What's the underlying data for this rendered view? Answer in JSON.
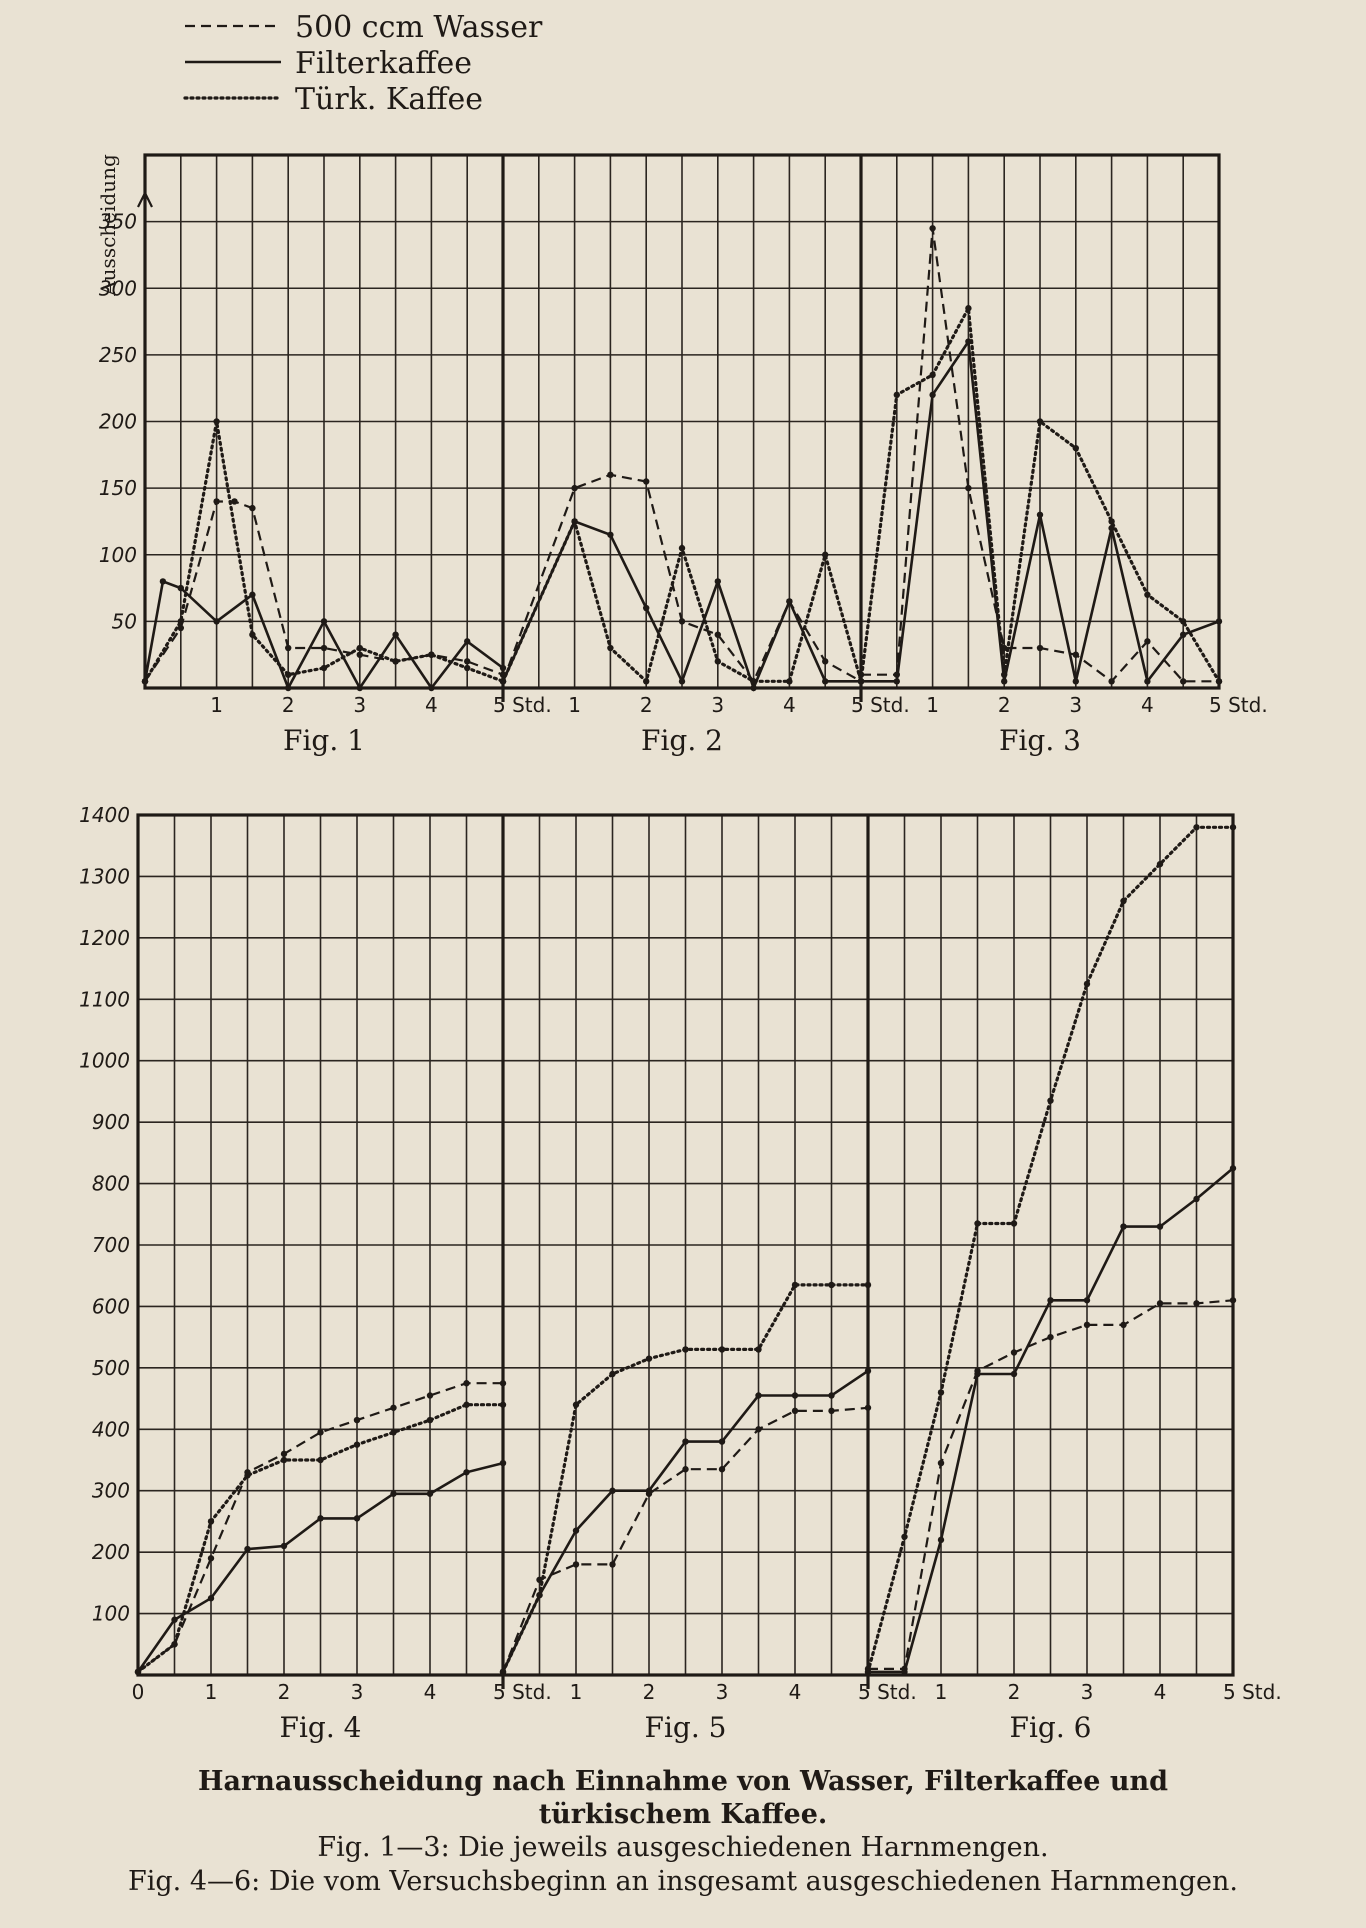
{
  "legend": {
    "items": [
      {
        "series": "wasser",
        "label": "500 ccm Wasser"
      },
      {
        "series": "filter",
        "label": "Filterkaffee"
      },
      {
        "series": "turk",
        "label": "Türk. Kaffee"
      }
    ]
  },
  "caption": {
    "title": "Harnausscheidung nach Einnahme von Wasser, Filterkaffee und türkischem Kaffee.",
    "line1": "Fig. 1—3: Die jeweils ausgeschiedenen Harnmengen.",
    "line2": "Fig. 4—6: Die vom Versuchsbeginn an insgesamt ausgeschiedenen Harnmengen."
  },
  "chart_data": [
    {
      "type": "line",
      "group": "top",
      "ylabel": "Ausscheidung",
      "ylim": [
        0,
        400
      ],
      "yticks": [
        50,
        100,
        150,
        200,
        250,
        300,
        350
      ],
      "xlim": [
        0,
        5
      ],
      "grid": true,
      "legend_position": "top-left",
      "panels": [
        {
          "figure": "Fig. 1",
          "xticks": [
            "1",
            "2",
            "3",
            "4",
            "5 Std."
          ],
          "series": [
            {
              "name": "500 ccm Wasser",
              "x": [
                0,
                0.5,
                1,
                1.25,
                1.5,
                2,
                2.5,
                3,
                3.5,
                4,
                4.5,
                5
              ],
              "y": [
                5,
                45,
                140,
                140,
                135,
                30,
                30,
                25,
                20,
                25,
                20,
                10
              ]
            },
            {
              "name": "Filterkaffee",
              "x": [
                0,
                0.25,
                0.5,
                1,
                1.5,
                2,
                2.5,
                3,
                3.5,
                4,
                4.5,
                5
              ],
              "y": [
                5,
                80,
                75,
                50,
                70,
                0,
                50,
                0,
                40,
                0,
                35,
                15
              ]
            },
            {
              "name": "Türk. Kaffee",
              "x": [
                0,
                0.5,
                1,
                1.5,
                2,
                2.5,
                3,
                3.5,
                4,
                4.5,
                5
              ],
              "y": [
                5,
                50,
                200,
                40,
                10,
                15,
                30,
                20,
                25,
                15,
                5
              ]
            }
          ]
        },
        {
          "figure": "Fig. 2",
          "xticks": [
            "1",
            "2",
            "3",
            "4",
            "5 Std."
          ],
          "series": [
            {
              "name": "500 ccm Wasser",
              "x": [
                0,
                1,
                1.5,
                2,
                2.5,
                3,
                3.5,
                4,
                4.5,
                5
              ],
              "y": [
                5,
                150,
                160,
                155,
                50,
                40,
                5,
                65,
                20,
                5
              ]
            },
            {
              "name": "Filterkaffee",
              "x": [
                0,
                1,
                1.5,
                2,
                2.5,
                3,
                3.5,
                4,
                4.5,
                5
              ],
              "y": [
                5,
                125,
                115,
                60,
                5,
                80,
                0,
                65,
                5,
                5
              ]
            },
            {
              "name": "Türk. Kaffee",
              "x": [
                0,
                1,
                1.5,
                2,
                2.5,
                3,
                3.5,
                4,
                4.5,
                5
              ],
              "y": [
                5,
                125,
                30,
                5,
                105,
                20,
                5,
                5,
                100,
                5
              ]
            }
          ]
        },
        {
          "figure": "Fig. 3",
          "xticks": [
            "1",
            "2",
            "3",
            "4",
            "5 Std."
          ],
          "series": [
            {
              "name": "500 ccm Wasser",
              "x": [
                0,
                0.5,
                1,
                1.5,
                2,
                2.5,
                3,
                3.5,
                4,
                4.5,
                5
              ],
              "y": [
                10,
                10,
                345,
                150,
                30,
                30,
                25,
                5,
                35,
                5,
                5
              ]
            },
            {
              "name": "Filterkaffee",
              "x": [
                0,
                0.5,
                1,
                1.5,
                2,
                2.5,
                3,
                3.5,
                4,
                4.5,
                5
              ],
              "y": [
                5,
                5,
                220,
                260,
                5,
                130,
                5,
                120,
                5,
                40,
                50
              ]
            },
            {
              "name": "Türk. Kaffee",
              "x": [
                0,
                0.5,
                1,
                1.5,
                2,
                2.5,
                3,
                3.5,
                4,
                4.5,
                5
              ],
              "y": [
                5,
                220,
                235,
                285,
                10,
                200,
                180,
                125,
                70,
                50,
                5
              ]
            }
          ]
        }
      ]
    },
    {
      "type": "line",
      "group": "bottom",
      "ylim": [
        0,
        1400
      ],
      "yticks": [
        100,
        200,
        300,
        400,
        500,
        600,
        700,
        800,
        900,
        1000,
        1100,
        1200,
        1300,
        1400
      ],
      "xlim": [
        0,
        5
      ],
      "grid": true,
      "panels": [
        {
          "figure": "Fig. 4",
          "xticks": [
            "0",
            "1",
            "2",
            "3",
            "4",
            "5 Std."
          ],
          "series": [
            {
              "name": "500 ccm Wasser",
              "x": [
                0,
                0.5,
                1,
                1.5,
                2,
                2.5,
                3,
                3.5,
                4,
                4.5,
                5
              ],
              "y": [
                5,
                50,
                190,
                330,
                360,
                395,
                415,
                435,
                455,
                475,
                475
              ]
            },
            {
              "name": "Filterkaffee",
              "x": [
                0,
                0.5,
                1,
                1.5,
                2,
                2.5,
                3,
                3.5,
                4,
                4.5,
                5
              ],
              "y": [
                5,
                90,
                125,
                205,
                210,
                255,
                255,
                295,
                295,
                330,
                345
              ]
            },
            {
              "name": "Türk. Kaffee",
              "x": [
                0,
                0.5,
                1,
                1.5,
                2,
                2.5,
                3,
                3.5,
                4,
                4.5,
                5
              ],
              "y": [
                5,
                50,
                250,
                325,
                350,
                350,
                375,
                395,
                415,
                440,
                440
              ]
            }
          ]
        },
        {
          "figure": "Fig. 5",
          "xticks": [
            "1",
            "2",
            "3",
            "4",
            "5 Std."
          ],
          "series": [
            {
              "name": "500 ccm Wasser",
              "x": [
                0,
                0.5,
                1,
                1.5,
                2,
                2.5,
                3,
                3.5,
                4,
                4.5,
                5
              ],
              "y": [
                5,
                155,
                180,
                180,
                295,
                335,
                335,
                400,
                430,
                430,
                435
              ]
            },
            {
              "name": "Filterkaffee",
              "x": [
                0,
                0.5,
                1,
                1.5,
                2,
                2.5,
                3,
                3.5,
                4,
                4.5,
                5
              ],
              "y": [
                5,
                130,
                235,
                300,
                300,
                380,
                380,
                455,
                455,
                455,
                495
              ]
            },
            {
              "name": "Türk. Kaffee",
              "x": [
                0,
                0.5,
                1,
                1.5,
                2,
                2.5,
                3,
                3.5,
                4,
                4.5,
                5
              ],
              "y": [
                5,
                130,
                440,
                490,
                515,
                530,
                530,
                530,
                635,
                635,
                635
              ]
            }
          ]
        },
        {
          "figure": "Fig. 6",
          "xticks": [
            "1",
            "2",
            "3",
            "4",
            "5 Std."
          ],
          "series": [
            {
              "name": "500 ccm Wasser",
              "x": [
                0,
                0.5,
                1,
                1.5,
                2,
                2.5,
                3,
                3.5,
                4,
                4.5,
                5
              ],
              "y": [
                10,
                10,
                345,
                495,
                525,
                550,
                570,
                570,
                605,
                605,
                610
              ]
            },
            {
              "name": "Filterkaffee",
              "x": [
                0,
                0.5,
                1,
                1.5,
                2,
                2.5,
                3,
                3.5,
                4,
                4.5,
                5
              ],
              "y": [
                5,
                5,
                220,
                490,
                490,
                610,
                610,
                730,
                730,
                775,
                825
              ]
            },
            {
              "name": "Türk. Kaffee",
              "x": [
                0,
                0.5,
                1,
                1.5,
                2,
                2.5,
                3,
                3.5,
                4,
                4.5,
                5
              ],
              "y": [
                5,
                225,
                460,
                735,
                735,
                935,
                1125,
                1260,
                1320,
                1380,
                1380
              ]
            }
          ]
        }
      ]
    }
  ]
}
